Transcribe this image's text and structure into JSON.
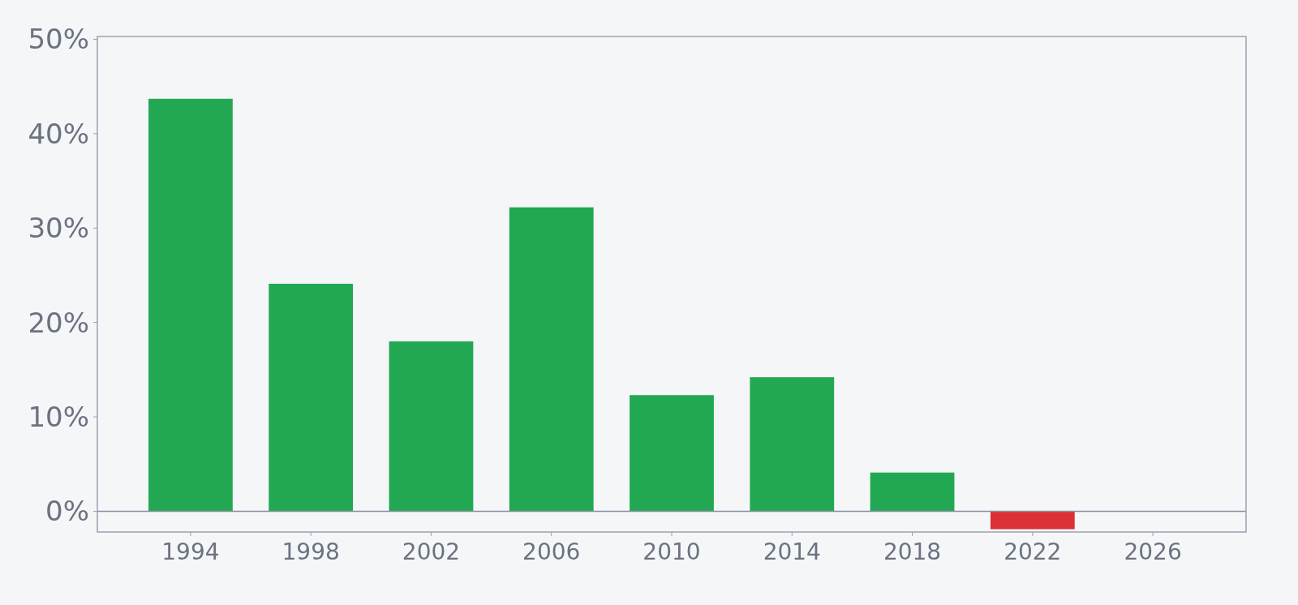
{
  "chart_data": {
    "type": "bar",
    "x": [
      1994,
      1998,
      2002,
      2006,
      2010,
      2014,
      2018,
      2022
    ],
    "values": [
      43.7,
      24.1,
      18.0,
      32.2,
      12.3,
      14.2,
      4.1,
      -1.9
    ],
    "colors": [
      "#22a853",
      "#22a853",
      "#22a853",
      "#22a853",
      "#22a853",
      "#22a853",
      "#22a853",
      "#dc3035"
    ],
    "xlim": [
      1990.9,
      2029.1
    ],
    "xticks": [
      1994,
      1998,
      2002,
      2006,
      2010,
      2014,
      2018,
      2022,
      2026
    ],
    "ylim": [
      -2.2,
      50.3
    ],
    "yticks": [
      {
        "value": 0,
        "label": "0%"
      },
      {
        "value": 10,
        "label": "10%"
      },
      {
        "value": 20,
        "label": "20%"
      },
      {
        "value": 30,
        "label": "30%"
      },
      {
        "value": 40,
        "label": "40%"
      },
      {
        "value": 50,
        "label": "50%"
      }
    ]
  }
}
